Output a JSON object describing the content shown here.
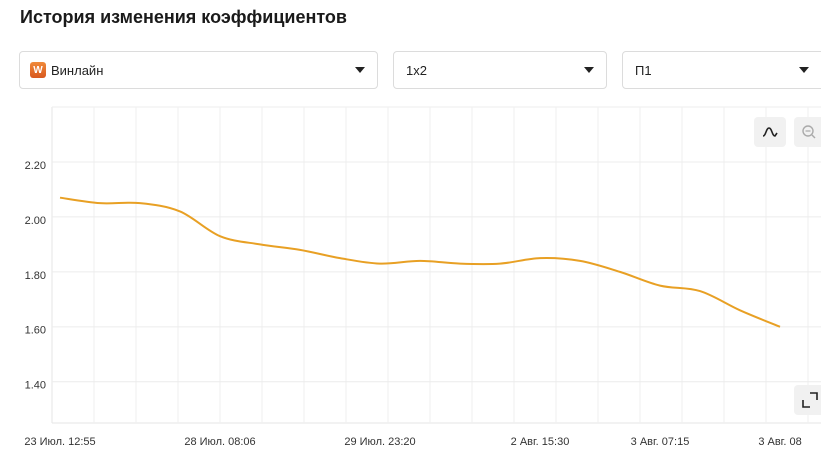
{
  "header": {
    "title": "История изменения коэффициентов"
  },
  "filters": [
    {
      "icon": "W",
      "label": "Винлайн"
    },
    {
      "label": "1x2"
    },
    {
      "label": "П1"
    }
  ],
  "chart_data": {
    "type": "line",
    "categories": [
      "23 Июл. 12:55",
      null,
      null,
      null,
      "28 Июл. 08:06",
      null,
      null,
      null,
      "29 Июл. 23:20",
      null,
      null,
      null,
      "2 Авг. 15:30",
      null,
      null,
      "3 Авг. 07:15",
      null,
      null,
      "3 Авг. 08"
    ],
    "series": [
      {
        "color": "#e8a024",
        "values": [
          2.07,
          2.05,
          2.05,
          2.02,
          1.93,
          1.9,
          1.88,
          1.85,
          1.83,
          1.84,
          1.83,
          1.83,
          1.85,
          1.84,
          1.8,
          1.75,
          1.73,
          1.66,
          1.6
        ]
      }
    ],
    "ylim": [
      1.25,
      2.4
    ],
    "yticks": [
      {
        "value": 2.2,
        "label": "2.20"
      },
      {
        "value": 2.0,
        "label": "2.00"
      },
      {
        "value": 1.8,
        "label": "1.80"
      },
      {
        "value": 1.6,
        "label": "1.60"
      },
      {
        "value": 1.4,
        "label": "1.40"
      }
    ],
    "grid": true
  }
}
